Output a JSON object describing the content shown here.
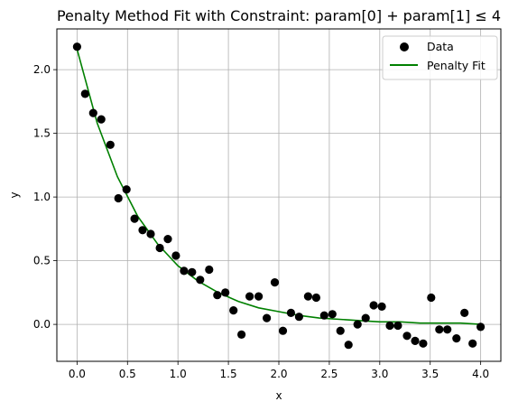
{
  "chart_data": {
    "type": "scatter",
    "title": "Penalty Method Fit with Constraint: param[0] + param[1] ≤ 4",
    "xlabel": "x",
    "ylabel": "y",
    "xlim": [
      -0.2,
      4.2
    ],
    "ylim": [
      -0.29,
      2.32
    ],
    "x_ticks": [
      0.0,
      0.5,
      1.0,
      1.5,
      2.0,
      2.5,
      3.0,
      3.5,
      4.0
    ],
    "x_tick_labels": [
      "0.0",
      "0.5",
      "1.0",
      "1.5",
      "2.0",
      "2.5",
      "3.0",
      "3.5",
      "4.0"
    ],
    "y_ticks": [
      0.0,
      0.5,
      1.0,
      1.5,
      2.0
    ],
    "y_tick_labels": [
      "0.0",
      "0.5",
      "1.0",
      "1.5",
      "2.0"
    ],
    "grid": true,
    "legend": {
      "position": "upper right",
      "entries": [
        "Data",
        "Penalty Fit"
      ]
    },
    "colors": {
      "data": "#000000",
      "fit": "#008000",
      "grid": "#b0b0b0"
    },
    "series": [
      {
        "name": "Data",
        "kind": "scatter",
        "x": [
          0.0,
          0.08,
          0.16,
          0.24,
          0.33,
          0.41,
          0.49,
          0.57,
          0.65,
          0.73,
          0.82,
          0.9,
          0.98,
          1.06,
          1.14,
          1.22,
          1.31,
          1.39,
          1.47,
          1.55,
          1.63,
          1.71,
          1.8,
          1.88,
          1.96,
          2.04,
          2.12,
          2.2,
          2.29,
          2.37,
          2.45,
          2.53,
          2.61,
          2.69,
          2.78,
          2.86,
          2.94,
          3.02,
          3.1,
          3.18,
          3.27,
          3.35,
          3.43,
          3.51,
          3.59,
          3.67,
          3.76,
          3.84,
          3.92,
          4.0
        ],
        "y": [
          2.18,
          1.81,
          1.66,
          1.61,
          1.41,
          0.99,
          1.06,
          0.83,
          0.74,
          0.71,
          0.6,
          0.67,
          0.54,
          0.42,
          0.41,
          0.35,
          0.43,
          0.23,
          0.25,
          0.11,
          -0.08,
          0.22,
          0.22,
          0.05,
          0.33,
          -0.05,
          0.09,
          0.06,
          0.22,
          0.21,
          0.07,
          0.08,
          -0.05,
          -0.16,
          0.0,
          0.05,
          0.15,
          0.14,
          -0.01,
          -0.01,
          -0.09,
          -0.13,
          -0.15,
          0.21,
          -0.04,
          -0.04,
          -0.11,
          0.09,
          -0.15,
          -0.02
        ]
      },
      {
        "name": "Penalty Fit",
        "kind": "line",
        "x": [
          0.0,
          0.2,
          0.4,
          0.6,
          0.8,
          1.0,
          1.2,
          1.4,
          1.6,
          1.8,
          2.0,
          2.2,
          2.4,
          2.6,
          2.8,
          3.0,
          3.2,
          3.4,
          3.6,
          3.8,
          4.0
        ],
        "y": [
          2.16,
          1.58,
          1.16,
          0.85,
          0.63,
          0.46,
          0.34,
          0.25,
          0.18,
          0.13,
          0.1,
          0.07,
          0.05,
          0.04,
          0.03,
          0.02,
          0.02,
          0.01,
          0.01,
          0.01,
          0.0
        ]
      }
    ]
  }
}
